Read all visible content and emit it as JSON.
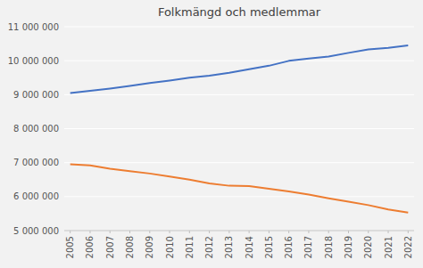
{
  "chart_data": {
    "type": "line",
    "title": "Folkmängd och medlemmar",
    "x": [
      2005,
      2006,
      2007,
      2008,
      2009,
      2010,
      2011,
      2012,
      2013,
      2014,
      2015,
      2016,
      2017,
      2018,
      2019,
      2020,
      2021,
      2022
    ],
    "series": [
      {
        "color": "#4472c4",
        "values": [
          9050000,
          9113000,
          9182000,
          9257000,
          9341000,
          9416000,
          9500000,
          9556000,
          9645000,
          9747000,
          9851000,
          9995000,
          10065000,
          10120000,
          10230000,
          10330000,
          10380000,
          10450000
        ]
      },
      {
        "color": "#ed7d31",
        "values": [
          6950000,
          6920000,
          6820000,
          6750000,
          6680000,
          6590000,
          6500000,
          6390000,
          6320000,
          6310000,
          6230000,
          6150000,
          6060000,
          5950000,
          5850000,
          5750000,
          5620000,
          5530000
        ]
      }
    ],
    "xlim": [
      2004.7,
      2022.3
    ],
    "xticks": [
      2005,
      2006,
      2007,
      2008,
      2009,
      2010,
      2011,
      2012,
      2013,
      2014,
      2015,
      2016,
      2017,
      2018,
      2019,
      2020,
      2021,
      2022
    ],
    "ylim": [
      5000000,
      11000000
    ],
    "yticks": [
      {
        "value": 5000000,
        "label": "5 000 000"
      },
      {
        "value": 6000000,
        "label": "6 000 000"
      },
      {
        "value": 7000000,
        "label": "7 000 000"
      },
      {
        "value": 8000000,
        "label": "8 000 000"
      },
      {
        "value": 9000000,
        "label": "9 000 000"
      },
      {
        "value": 10000000,
        "label": "10 000 000"
      },
      {
        "value": 11000000,
        "label": "11 000 000"
      }
    ],
    "grid": true
  }
}
